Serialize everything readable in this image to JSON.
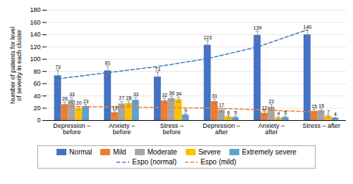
{
  "chart_data": {
    "type": "bar",
    "ylabel": "Number of patients for level\nof severity in each cluster",
    "categories": [
      "Depression – before",
      "Anxiety – before",
      "Stress – before",
      "Depression – after",
      "Anxiety – after",
      "Stress – after"
    ],
    "series": [
      {
        "name": "Normal",
        "color": "#4472C4",
        "values": [
          73,
          81,
          71,
          123,
          139,
          140
        ],
        "errors": [
          9,
          8,
          8,
          7,
          7,
          7
        ]
      },
      {
        "name": "Mild",
        "color": "#ED7D31",
        "values": [
          26,
          13,
          32,
          31,
          12,
          15
        ],
        "errors": [
          4,
          3,
          4,
          4,
          3,
          3
        ]
      },
      {
        "name": "Moderate",
        "color": "#A5A5A5",
        "values": [
          33,
          27,
          36,
          17,
          22,
          16
        ],
        "errors": [
          4,
          4,
          4,
          3,
          4,
          3
        ]
      },
      {
        "name": "Severe",
        "color": "#FFC000",
        "values": [
          20,
          28,
          34,
          6,
          4,
          7
        ],
        "errors": [
          3,
          4,
          4,
          2,
          2,
          2
        ]
      },
      {
        "name": "Extremely severe",
        "color": "#5BA3D0",
        "values": [
          23,
          33,
          9,
          5,
          5,
          4
        ],
        "errors": [
          3,
          4,
          2,
          2,
          2,
          1
        ]
      },
      {
        "name": "Espo (normal)",
        "type": "line",
        "line_style": "dashed",
        "color": "#4472C4",
        "values": [
          68,
          78,
          88,
          101,
          120,
          148
        ]
      },
      {
        "name": "Espo (mild)",
        "type": "line",
        "line_style": "dashed",
        "color": "#ED7D31",
        "values": [
          23,
          22,
          21,
          20,
          17,
          14
        ]
      }
    ],
    "ylim": [
      0,
      180
    ],
    "yticks": [
      0,
      20,
      40,
      60,
      80,
      100,
      120,
      140,
      160,
      180
    ],
    "grid": true,
    "data_labels": true,
    "legend": "bottom"
  }
}
